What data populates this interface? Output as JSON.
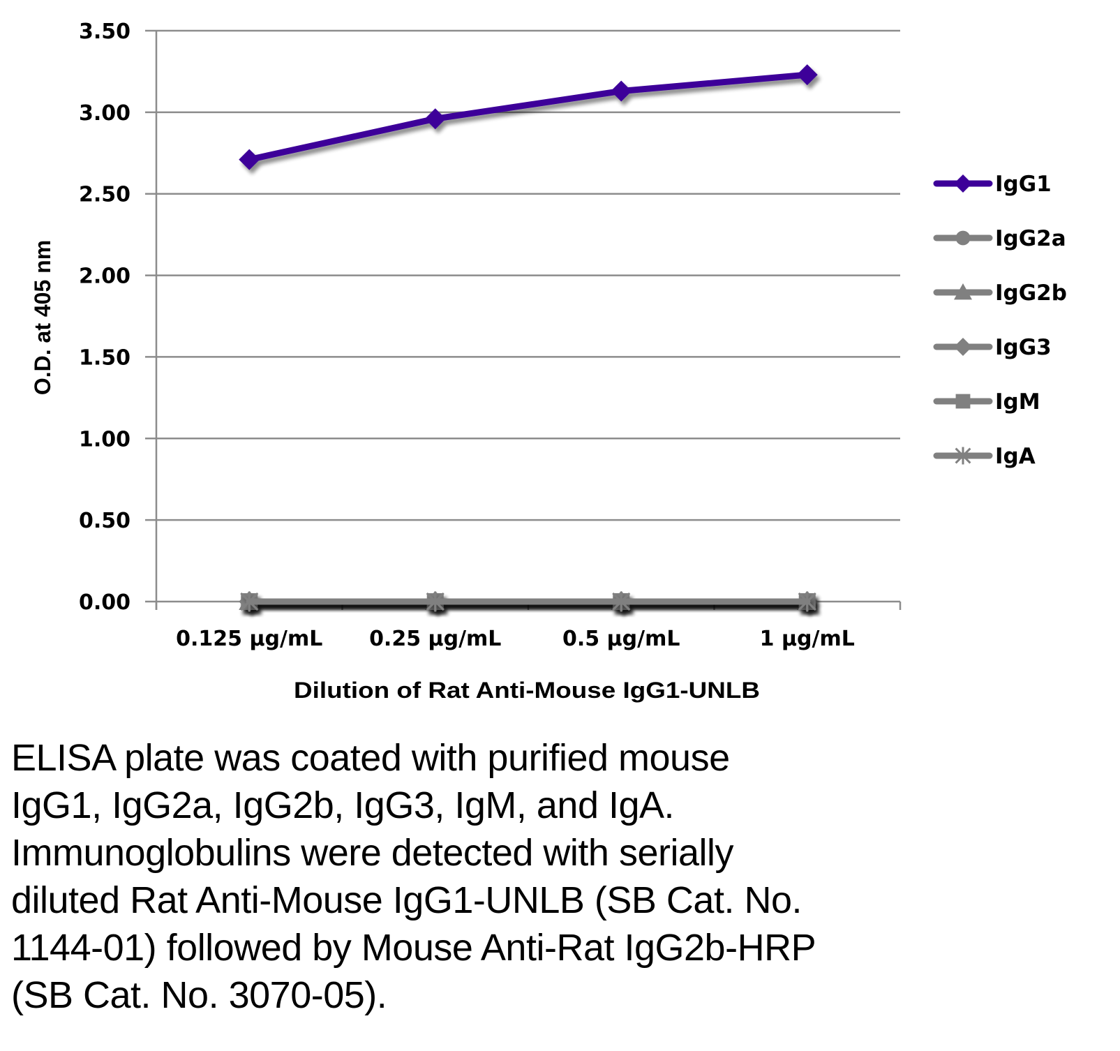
{
  "chart_data": {
    "type": "line",
    "title": "",
    "xlabel": "Dilution of Rat Anti-Mouse IgG1-UNLB",
    "ylabel": "O.D. at 405 nm",
    "categories": [
      "0.125 µg/mL",
      "0.25 µg/mL",
      "0.5 µg/mL",
      "1 µg/mL"
    ],
    "ylim": [
      0,
      3.5
    ],
    "yticks": [
      0,
      0.5,
      1.0,
      1.5,
      2.0,
      2.5,
      3.0,
      3.5
    ],
    "ytick_labels": [
      "0.00",
      "0.50",
      "1.00",
      "1.50",
      "2.00",
      "2.50",
      "3.00",
      "3.50"
    ],
    "grid": true,
    "legend_position": "right",
    "series": [
      {
        "name": "IgG1",
        "values": [
          2.71,
          2.96,
          3.13,
          3.23
        ],
        "color": "#3d0099",
        "marker": "diamond"
      },
      {
        "name": "IgG2a",
        "values": [
          0.0,
          0.0,
          0.0,
          0.0
        ],
        "color": "#808080",
        "marker": "circle"
      },
      {
        "name": "IgG2b",
        "values": [
          0.0,
          0.0,
          0.0,
          0.0
        ],
        "color": "#808080",
        "marker": "triangle"
      },
      {
        "name": "IgG3",
        "values": [
          0.0,
          0.0,
          0.0,
          0.0
        ],
        "color": "#808080",
        "marker": "diamond"
      },
      {
        "name": "IgM",
        "values": [
          0.0,
          0.0,
          0.0,
          0.0
        ],
        "color": "#808080",
        "marker": "square"
      },
      {
        "name": "IgA",
        "values": [
          0.0,
          0.0,
          0.0,
          0.0
        ],
        "color": "#808080",
        "marker": "star"
      }
    ]
  },
  "caption": "ELISA plate was coated with purified mouse\nIgG1, IgG2a, IgG2b, IgG3, IgM, and IgA.\nImmunoglobulins were detected with serially\ndiluted Rat Anti-Mouse IgG1-UNLB (SB Cat. No.\n1144-01) followed by Mouse Anti-Rat IgG2b-HRP\n(SB Cat. No. 3070-05)."
}
